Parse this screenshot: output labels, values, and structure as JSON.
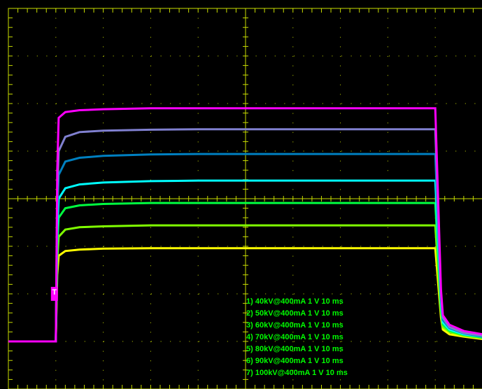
{
  "chart_data": {
    "type": "line",
    "x": [
      0,
      10,
      10.3,
      10.6,
      12,
      15,
      20,
      30,
      40,
      50,
      60,
      70,
      80,
      90,
      91.2,
      91.6,
      93,
      96,
      100
    ],
    "xlim": [
      0,
      100
    ],
    "xticks": [
      0,
      10,
      20,
      30,
      40,
      50,
      60,
      70,
      80,
      90,
      100
    ],
    "ylim": [
      -4,
      4
    ],
    "yticks": [
      -4,
      -3,
      -2,
      -1,
      0,
      1,
      2,
      3,
      4
    ],
    "grid": true,
    "trigger_label": "T",
    "series": [
      {
        "name": "1) 40kV@400mA  1  V   10 ms",
        "color": "#ffff00",
        "values": [
          -3,
          -3,
          -1.6,
          -1.2,
          -1.1,
          -1.07,
          -1.05,
          -1.04,
          -1.04,
          -1.04,
          -1.04,
          -1.04,
          -1.04,
          -1.04,
          -2.5,
          -2.75,
          -2.85,
          -2.9,
          -2.95
        ]
      },
      {
        "name": "2) 50kV@400mA  1  V   10 ms",
        "color": "#80ff00",
        "values": [
          -3,
          -3,
          -1.3,
          -0.8,
          -0.65,
          -0.6,
          -0.58,
          -0.56,
          -0.56,
          -0.56,
          -0.56,
          -0.56,
          -0.56,
          -0.56,
          -2.4,
          -2.7,
          -2.8,
          -2.88,
          -2.93
        ]
      },
      {
        "name": "3) 60kV@400mA  1  V   10 ms",
        "color": "#00ff40",
        "values": [
          -3,
          -3,
          -1.0,
          -0.4,
          -0.2,
          -0.14,
          -0.11,
          -0.09,
          -0.09,
          -0.09,
          -0.09,
          -0.09,
          -0.09,
          -0.09,
          -2.3,
          -2.65,
          -2.78,
          -2.86,
          -2.92
        ]
      },
      {
        "name": "4) 70kV@400mA  1  V   10 ms",
        "color": "#00ffff",
        "values": [
          -3,
          -3,
          -0.7,
          0,
          0.22,
          0.3,
          0.34,
          0.37,
          0.38,
          0.38,
          0.38,
          0.38,
          0.38,
          0.38,
          -2.2,
          -2.6,
          -2.75,
          -2.85,
          -2.9
        ]
      },
      {
        "name": "5) 80kV@400mA  1  V   10 ms",
        "color": "#0080c0",
        "values": [
          -3,
          -3,
          -0.3,
          0.5,
          0.78,
          0.86,
          0.9,
          0.93,
          0.94,
          0.94,
          0.94,
          0.94,
          0.94,
          0.94,
          -2.1,
          -2.55,
          -2.72,
          -2.83,
          -2.9
        ]
      },
      {
        "name": "6) 90kV@400mA  1  V   10 ms",
        "color": "#8080d0",
        "values": [
          -3,
          -3,
          0.1,
          1.0,
          1.3,
          1.4,
          1.43,
          1.45,
          1.46,
          1.46,
          1.46,
          1.46,
          1.46,
          1.46,
          -2.0,
          -2.5,
          -2.7,
          -2.82,
          -2.88
        ]
      },
      {
        "name": "7) 100kV@400mA  1  V   10 ms",
        "color": "#ff00ff",
        "values": [
          -3,
          -3,
          0.6,
          1.7,
          1.82,
          1.86,
          1.88,
          1.9,
          1.9,
          1.9,
          1.9,
          1.9,
          1.9,
          1.9,
          -1.9,
          -2.45,
          -2.65,
          -2.78,
          -2.85
        ]
      }
    ]
  }
}
